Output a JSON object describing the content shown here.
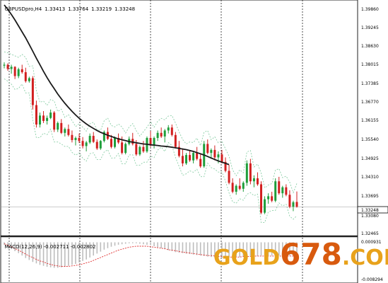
{
  "header": {
    "symbol": "GBPUSDpro,H4",
    "open": "1.33413",
    "high": "1.33764",
    "low": "1.33219",
    "close": "1.33248"
  },
  "price_axis": {
    "labels": [
      "1.39860",
      "1.39245",
      "1.38630",
      "1.38015",
      "1.37385",
      "1.36770",
      "1.36155",
      "1.35540",
      "1.34925",
      "1.34310",
      "1.33695",
      "1.33080",
      "1.32465"
    ],
    "current_price": "1.33248"
  },
  "macd_panel": {
    "label": "MACD(12,26,9)",
    "main": "-0.002711",
    "signal": "-0.002802",
    "axis_top": "0.000931",
    "axis_bottom": "-0.008294"
  },
  "watermark": {
    "part1": "GOLD",
    "part2": "678",
    "part3": ".COM"
  },
  "colors": {
    "bull_candle": "#1e9e3a",
    "bear_candle": "#d21f1f",
    "moving_average": "#1a1a1a",
    "envelope": "#8ccfa8",
    "grid": "#222222",
    "macd_hist": "#bdbdbd",
    "macd_signal": "#e03030"
  },
  "chart_data": {
    "type": "candlestick",
    "symbol": "GBPUSDpro,H4",
    "y_range": [
      1.3226,
      1.4
    ],
    "candles": [
      [
        1.3797,
        1.3808,
        1.3788,
        1.38
      ],
      [
        1.38,
        1.3805,
        1.378,
        1.3786
      ],
      [
        1.3786,
        1.38,
        1.377,
        1.3793
      ],
      [
        1.3793,
        1.3795,
        1.3752,
        1.3762
      ],
      [
        1.3762,
        1.379,
        1.3755,
        1.3785
      ],
      [
        1.3785,
        1.38,
        1.377,
        1.3775
      ],
      [
        1.3775,
        1.379,
        1.374,
        1.3745
      ],
      [
        1.3745,
        1.376,
        1.374,
        1.3755
      ],
      [
        1.3755,
        1.3762,
        1.365,
        1.3665
      ],
      [
        1.3665,
        1.368,
        1.359,
        1.36
      ],
      [
        1.36,
        1.364,
        1.359,
        1.363
      ],
      [
        1.363,
        1.3645,
        1.3605,
        1.3612
      ],
      [
        1.3612,
        1.363,
        1.36,
        1.3622
      ],
      [
        1.3622,
        1.365,
        1.3618,
        1.364
      ],
      [
        1.364,
        1.3645,
        1.3575,
        1.3583
      ],
      [
        1.3583,
        1.361,
        1.3575,
        1.3605
      ],
      [
        1.3605,
        1.3618,
        1.3568,
        1.3572
      ],
      [
        1.3572,
        1.359,
        1.356,
        1.3585
      ],
      [
        1.3585,
        1.36,
        1.356,
        1.3565
      ],
      [
        1.3565,
        1.358,
        1.354,
        1.3548
      ],
      [
        1.3548,
        1.356,
        1.353,
        1.3555
      ],
      [
        1.3555,
        1.357,
        1.3538,
        1.3545
      ],
      [
        1.3545,
        1.3558,
        1.352,
        1.3528
      ],
      [
        1.3528,
        1.3545,
        1.351,
        1.354
      ],
      [
        1.354,
        1.357,
        1.3535,
        1.3562
      ],
      [
        1.3562,
        1.3575,
        1.3538,
        1.3542
      ],
      [
        1.3542,
        1.355,
        1.3515,
        1.352
      ],
      [
        1.352,
        1.3548,
        1.3515,
        1.3545
      ],
      [
        1.3545,
        1.358,
        1.354,
        1.3575
      ],
      [
        1.3575,
        1.359,
        1.3548,
        1.3552
      ],
      [
        1.3552,
        1.3565,
        1.352,
        1.3525
      ],
      [
        1.3525,
        1.356,
        1.352,
        1.3555
      ],
      [
        1.3555,
        1.357,
        1.3535,
        1.354
      ],
      [
        1.354,
        1.356,
        1.35,
        1.3505
      ],
      [
        1.3505,
        1.354,
        1.35,
        1.3535
      ],
      [
        1.3535,
        1.356,
        1.353,
        1.3552
      ],
      [
        1.3552,
        1.3572,
        1.353,
        1.3535
      ],
      [
        1.3535,
        1.3548,
        1.3495,
        1.35
      ],
      [
        1.35,
        1.353,
        1.3495,
        1.3525
      ],
      [
        1.3525,
        1.3545,
        1.3505,
        1.351
      ],
      [
        1.351,
        1.356,
        1.3505,
        1.3555
      ],
      [
        1.3555,
        1.3578,
        1.3525,
        1.353
      ],
      [
        1.353,
        1.356,
        1.352,
        1.3555
      ],
      [
        1.3555,
        1.358,
        1.3545,
        1.3572
      ],
      [
        1.3572,
        1.359,
        1.3555,
        1.356
      ],
      [
        1.356,
        1.3585,
        1.354,
        1.358
      ],
      [
        1.358,
        1.3598,
        1.357,
        1.359
      ],
      [
        1.359,
        1.36,
        1.356,
        1.3565
      ],
      [
        1.3565,
        1.3575,
        1.352,
        1.3525
      ],
      [
        1.3525,
        1.3545,
        1.349,
        1.3495
      ],
      [
        1.3495,
        1.352,
        1.346,
        1.347
      ],
      [
        1.347,
        1.3505,
        1.3465,
        1.3498
      ],
      [
        1.3498,
        1.3512,
        1.3475,
        1.348
      ],
      [
        1.348,
        1.351,
        1.347,
        1.3505
      ],
      [
        1.3505,
        1.3525,
        1.348,
        1.3485
      ],
      [
        1.3485,
        1.35,
        1.3455,
        1.346
      ],
      [
        1.346,
        1.3545,
        1.3455,
        1.3535
      ],
      [
        1.3535,
        1.355,
        1.35,
        1.3505
      ],
      [
        1.3505,
        1.352,
        1.3485,
        1.3515
      ],
      [
        1.3515,
        1.353,
        1.348,
        1.349
      ],
      [
        1.349,
        1.351,
        1.347,
        1.35
      ],
      [
        1.35,
        1.3515,
        1.347,
        1.3475
      ],
      [
        1.3475,
        1.349,
        1.344,
        1.3445
      ],
      [
        1.3445,
        1.3465,
        1.34,
        1.3405
      ],
      [
        1.3405,
        1.342,
        1.337,
        1.3375
      ],
      [
        1.3375,
        1.34,
        1.3365,
        1.3395
      ],
      [
        1.3395,
        1.342,
        1.338,
        1.3385
      ],
      [
        1.3385,
        1.341,
        1.3375,
        1.3405
      ],
      [
        1.3405,
        1.348,
        1.3395,
        1.347
      ],
      [
        1.347,
        1.3485,
        1.34,
        1.341
      ],
      [
        1.341,
        1.343,
        1.339,
        1.342
      ],
      [
        1.342,
        1.344,
        1.3395,
        1.34
      ],
      [
        1.34,
        1.341,
        1.33,
        1.3305
      ],
      [
        1.3305,
        1.336,
        1.33,
        1.335
      ],
      [
        1.335,
        1.337,
        1.3335,
        1.336
      ],
      [
        1.336,
        1.3375,
        1.334,
        1.3345
      ],
      [
        1.3345,
        1.342,
        1.334,
        1.341
      ],
      [
        1.341,
        1.3425,
        1.3365,
        1.337
      ],
      [
        1.337,
        1.3395,
        1.3355,
        1.339
      ],
      [
        1.339,
        1.34,
        1.336,
        1.3365
      ],
      [
        1.3365,
        1.338,
        1.332,
        1.3325
      ],
      [
        1.3325,
        1.3345,
        1.331,
        1.334
      ],
      [
        1.3341,
        1.3376,
        1.3322,
        1.3325
      ]
    ],
    "moving_average": [
      1.4,
      1.3985,
      1.3968,
      1.395,
      1.393,
      1.391,
      1.389,
      1.3868,
      1.3845,
      1.3822,
      1.38,
      1.3778,
      1.3757,
      1.3738,
      1.372,
      1.3702,
      1.3686,
      1.3671,
      1.3657,
      1.3644,
      1.3632,
      1.3621,
      1.3611,
      1.3602,
      1.3594,
      1.3587,
      1.358,
      1.3574,
      1.3569,
      1.3564,
      1.356,
      1.3556,
      1.3552,
      1.3549,
      1.3546,
      1.3543,
      1.3541,
      1.3539,
      1.3537,
      1.3535,
      1.3534,
      1.3532,
      1.3531,
      1.353,
      1.3528,
      1.3527,
      1.3526,
      1.3524,
      1.3522,
      1.352,
      1.3518,
      1.3516,
      1.3513,
      1.351,
      1.3506,
      1.3502,
      1.3498,
      1.3493,
      1.3488,
      1.3483,
      1.3478,
      1.3474,
      1.347,
      1.3466
    ],
    "macd_range": [
      -0.008294,
      0.000931
    ],
    "macd_hist": [
      -0.0005,
      -0.0009,
      -0.0014,
      -0.0018,
      -0.0022,
      -0.0027,
      -0.0032,
      -0.0036,
      -0.004,
      -0.0043,
      -0.0046,
      -0.0048,
      -0.005,
      -0.0051,
      -0.0052,
      -0.0052,
      -0.0051,
      -0.005,
      -0.0048,
      -0.0046,
      -0.0044,
      -0.0041,
      -0.0038,
      -0.0035,
      -0.0031,
      -0.0027,
      -0.0023,
      -0.0019,
      -0.0015,
      -0.0012,
      -0.0009,
      -0.0007,
      -0.0005,
      -0.0004,
      -0.0003,
      -0.0002,
      -0.0002,
      -0.0002,
      -0.0003,
      -0.0004,
      -0.0005,
      -0.0006,
      -0.0008,
      -0.001,
      -0.0012,
      -0.0014,
      -0.0016,
      -0.0018,
      -0.002,
      -0.0021,
      -0.0022,
      -0.0023,
      -0.0024,
      -0.0025,
      -0.0026,
      -0.0027,
      -0.0028,
      -0.0029,
      -0.003,
      -0.0031,
      -0.0031,
      -0.0032,
      -0.0032,
      -0.0031,
      -0.0031,
      -0.003,
      -0.003,
      -0.0029,
      -0.0029,
      -0.0028,
      -0.0028,
      -0.0028,
      -0.0027,
      -0.0027,
      -0.0027,
      -0.0027,
      -0.0027,
      -0.0027,
      -0.0027,
      -0.0027,
      -0.0027,
      -0.0027,
      -0.0027
    ],
    "macd_signal": [
      -0.0003,
      -0.0006,
      -0.0009,
      -0.0013,
      -0.0016,
      -0.002,
      -0.0024,
      -0.0028,
      -0.0031,
      -0.0035,
      -0.0038,
      -0.004,
      -0.0043,
      -0.0045,
      -0.0047,
      -0.0048,
      -0.0049,
      -0.0049,
      -0.0049,
      -0.0048,
      -0.0047,
      -0.0046,
      -0.0044,
      -0.0042,
      -0.004,
      -0.0037,
      -0.0034,
      -0.0031,
      -0.0028,
      -0.0025,
      -0.0022,
      -0.0019,
      -0.0016,
      -0.0014,
      -0.0012,
      -0.001,
      -0.0009,
      -0.0008,
      -0.0008,
      -0.0008,
      -0.0008,
      -0.0009,
      -0.001,
      -0.0011,
      -0.0012,
      -0.0013,
      -0.0015,
      -0.0016,
      -0.0017,
      -0.0019,
      -0.002,
      -0.0021,
      -0.0022,
      -0.0023,
      -0.0024,
      -0.0025,
      -0.0026,
      -0.0027,
      -0.0027,
      -0.0028,
      -0.0029,
      -0.0029,
      -0.003,
      -0.003,
      -0.003,
      -0.003,
      -0.003,
      -0.0029,
      -0.0029,
      -0.0029,
      -0.0028,
      -0.0028,
      -0.0028,
      -0.0028,
      -0.0028,
      -0.0028,
      -0.0028,
      -0.0028,
      -0.0028,
      -0.0028,
      -0.0028,
      -0.0028,
      -0.0028
    ]
  }
}
